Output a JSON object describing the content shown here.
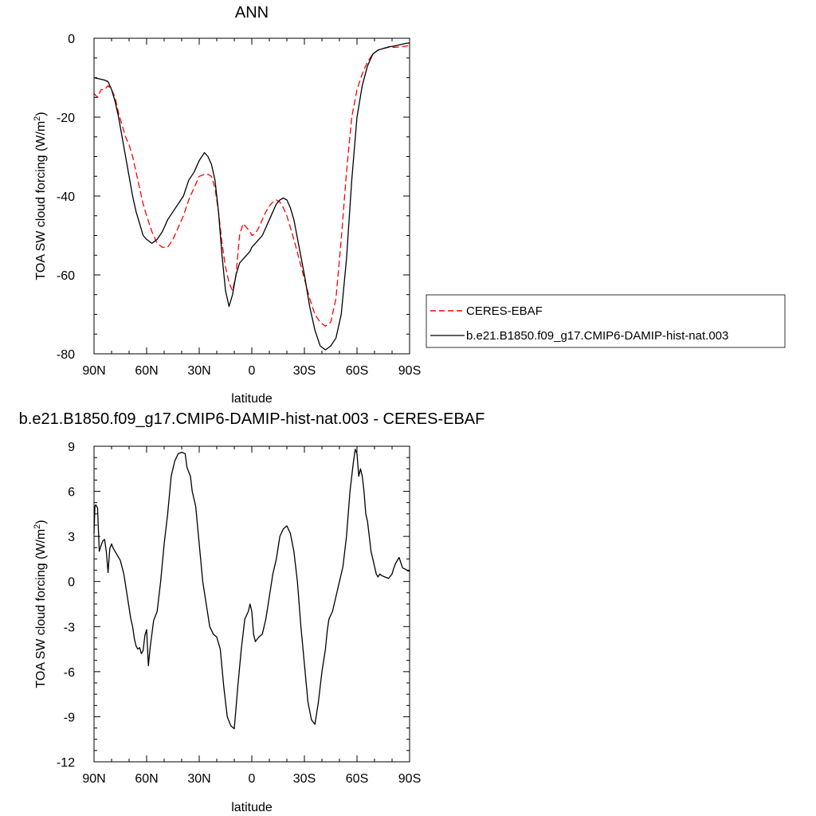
{
  "chart_data": [
    {
      "type": "line",
      "title": "ANN",
      "xlabel": "latitude",
      "ylabel": "TOA SW cloud forcing (W/m",
      "ylabel_sup": "2",
      "ylabel_end": ")",
      "xlim": [
        90,
        -90
      ],
      "ylim": [
        -80,
        0
      ],
      "x_ticks": [
        90,
        60,
        30,
        0,
        -30,
        -60,
        -90
      ],
      "x_tick_labels": [
        "90N",
        "60N",
        "30N",
        "0",
        "30S",
        "60S",
        "90S"
      ],
      "y_ticks": [
        0,
        -20,
        -40,
        -60,
        -80
      ],
      "y_tick_labels": [
        "0",
        "-20",
        "-40",
        "-60",
        "-80"
      ],
      "legend": "right-outside",
      "colors": {
        "CERES-EBAF": "#ff0000",
        "b.e21.B1850.f09_g17.CMIP6-DAMIP-hist-nat.003": "#000000"
      },
      "series": [
        {
          "name": "CERES-EBAF",
          "style": "dashed",
          "x": [
            90,
            88,
            86,
            84,
            82,
            80,
            78,
            76,
            74,
            72,
            70,
            68,
            66,
            64,
            62,
            60,
            57,
            54,
            51,
            48,
            45,
            42,
            39,
            36,
            33,
            30,
            27,
            25,
            23,
            21,
            19,
            17,
            15,
            13,
            11,
            9,
            7,
            5,
            3,
            1,
            0,
            -2,
            -4,
            -6,
            -8,
            -10,
            -12,
            -14,
            -16,
            -18,
            -20,
            -22,
            -24,
            -27,
            -30,
            -33,
            -36,
            -39,
            -42,
            -45,
            -48,
            -51,
            -54,
            -57,
            -60,
            -63,
            -66,
            -69,
            -72,
            -75,
            -78,
            -81,
            -84,
            -86,
            -88,
            -90
          ],
          "values": [
            -14,
            -15,
            -13,
            -13,
            -12,
            -13,
            -15,
            -19,
            -22,
            -25,
            -27,
            -30,
            -34,
            -38,
            -42,
            -45,
            -49,
            -52,
            -53,
            -53,
            -51,
            -48,
            -45,
            -41,
            -38,
            -35,
            -34.5,
            -34.5,
            -35,
            -38,
            -44,
            -52,
            -58,
            -62,
            -64,
            -60,
            -50,
            -47,
            -48,
            -49,
            -50,
            -49.5,
            -48,
            -46,
            -44,
            -42.5,
            -41.5,
            -41,
            -41.5,
            -43,
            -45,
            -48,
            -51,
            -56,
            -61,
            -66,
            -70,
            -72,
            -73,
            -72,
            -66,
            -51,
            -34,
            -20,
            -13,
            -9,
            -6,
            -4,
            -3,
            -2.6,
            -2.3,
            -2.3,
            -2.2,
            -2.1,
            -2.0,
            -1.8
          ]
        },
        {
          "name": "b.e21.B1850.f09_g17.CMIP6-DAMIP-hist-nat.003",
          "style": "solid",
          "x": [
            90,
            88,
            86,
            84,
            82,
            80,
            78,
            76,
            74,
            72,
            70,
            68,
            66,
            64,
            62,
            60,
            57,
            54,
            51,
            48,
            45,
            42,
            39,
            36,
            33,
            30,
            27,
            25,
            23,
            21,
            19,
            17,
            15,
            13,
            11,
            9,
            7,
            5,
            3,
            1,
            0,
            -2,
            -4,
            -6,
            -8,
            -10,
            -12,
            -14,
            -16,
            -18,
            -20,
            -22,
            -24,
            -27,
            -30,
            -33,
            -36,
            -39,
            -42,
            -45,
            -48,
            -51,
            -54,
            -57,
            -60,
            -63,
            -66,
            -69,
            -72,
            -75,
            -78,
            -81,
            -84,
            -86,
            -88,
            -90
          ],
          "values": [
            -10,
            -10.2,
            -10.4,
            -10.6,
            -11,
            -13,
            -16,
            -20,
            -25,
            -30,
            -35,
            -40,
            -44,
            -47,
            -50,
            -51,
            -52,
            -51,
            -49,
            -46,
            -44,
            -42,
            -40,
            -36,
            -34,
            -31,
            -29,
            -30,
            -32,
            -36,
            -44,
            -55,
            -64,
            -68,
            -65,
            -60,
            -57,
            -56,
            -55,
            -54,
            -53,
            -52,
            -51,
            -50,
            -48,
            -46,
            -44,
            -42,
            -41,
            -40.5,
            -41,
            -43,
            -46,
            -53,
            -60,
            -68,
            -74,
            -78,
            -79,
            -78,
            -76,
            -70,
            -56,
            -36,
            -20,
            -12,
            -7,
            -4,
            -3,
            -2.6,
            -2.2,
            -2.0,
            -1.7,
            -1.5,
            -1.3,
            -1.2
          ]
        }
      ]
    },
    {
      "type": "line",
      "title": "b.e21.B1850.f09_g17.CMIP6-DAMIP-hist-nat.003 - CERES-EBAF",
      "xlabel": "latitude",
      "ylabel": "TOA SW cloud forcing (W/m",
      "ylabel_sup": "2",
      "ylabel_end": ")",
      "xlim": [
        90,
        -90
      ],
      "ylim": [
        -12,
        9
      ],
      "x_ticks": [
        90,
        60,
        30,
        0,
        -30,
        -60,
        -90
      ],
      "x_tick_labels": [
        "90N",
        "60N",
        "30N",
        "0",
        "30S",
        "60S",
        "90S"
      ],
      "y_ticks": [
        9,
        6,
        3,
        0,
        -3,
        -6,
        -9,
        -12
      ],
      "y_tick_labels": [
        "9",
        "6",
        "3",
        "0",
        "-3",
        "-6",
        "-9",
        "-12"
      ],
      "series": [
        {
          "name": "",
          "style": "solid",
          "x": [
            90,
            89.5,
            89,
            88,
            87,
            86,
            85,
            84,
            83,
            82,
            81,
            80,
            79,
            77,
            75,
            73,
            71,
            69,
            68,
            67,
            66,
            65,
            64,
            63,
            62,
            61,
            60,
            59,
            58,
            57,
            56,
            54,
            52,
            50,
            48,
            46,
            44,
            42,
            40,
            38,
            37,
            36,
            35,
            34,
            32,
            30,
            28,
            26,
            24,
            22,
            20,
            18,
            16,
            14,
            12,
            10,
            8,
            6,
            4,
            2,
            1,
            0,
            -1,
            -2,
            -4,
            -6,
            -8,
            -10,
            -12,
            -14,
            -16,
            -18,
            -20,
            -22,
            -24,
            -26,
            -28,
            -30,
            -32,
            -34,
            -36,
            -38,
            -40,
            -42,
            -43,
            -44,
            -46,
            -48,
            -50,
            -52,
            -54,
            -56,
            -58,
            -59,
            -60,
            -61,
            -62,
            -63,
            -64,
            -65,
            -66,
            -67,
            -68,
            -69,
            -70,
            -71,
            -72,
            -73,
            -74,
            -76,
            -78,
            -80,
            -81,
            -82,
            -84,
            -86,
            -88,
            -89,
            -90
          ],
          "values": [
            3.2,
            5.0,
            5.1,
            4.9,
            2.0,
            2.4,
            2.7,
            2.8,
            2.0,
            0.6,
            2.2,
            2.5,
            2.2,
            1.8,
            1.4,
            0.5,
            -1.0,
            -2.5,
            -3.0,
            -3.8,
            -4.3,
            -4.5,
            -4.4,
            -4.8,
            -4.6,
            -3.6,
            -3.2,
            -5.6,
            -4.4,
            -3.5,
            -2.6,
            -2.0,
            0.0,
            2.5,
            4.5,
            7.0,
            8.0,
            8.5,
            8.6,
            8.5,
            7.6,
            7.3,
            7.0,
            6.0,
            5.0,
            2.5,
            0.0,
            -1.5,
            -3.0,
            -3.5,
            -3.7,
            -4.5,
            -7.0,
            -9.0,
            -9.6,
            -9.8,
            -7.0,
            -4.5,
            -2.5,
            -2.0,
            -1.5,
            -2.0,
            -3.5,
            -4.0,
            -3.7,
            -3.5,
            -2.5,
            -1.0,
            0.5,
            1.5,
            3.0,
            3.5,
            3.7,
            3.2,
            2.0,
            0.0,
            -3.0,
            -5.5,
            -8.0,
            -9.2,
            -9.5,
            -8.0,
            -6.0,
            -4.5,
            -3.3,
            -2.5,
            -2.0,
            -1.0,
            0.0,
            1.0,
            3.0,
            6.0,
            8.0,
            8.8,
            8.5,
            7.0,
            7.5,
            7.0,
            6.0,
            4.5,
            4.0,
            3.0,
            2.0,
            1.5,
            1.0,
            0.5,
            0.3,
            0.5,
            0.4,
            0.3,
            0.2,
            0.5,
            0.9,
            1.2,
            1.6,
            0.9,
            0.8,
            0.7,
            0.7
          ]
        }
      ]
    }
  ]
}
